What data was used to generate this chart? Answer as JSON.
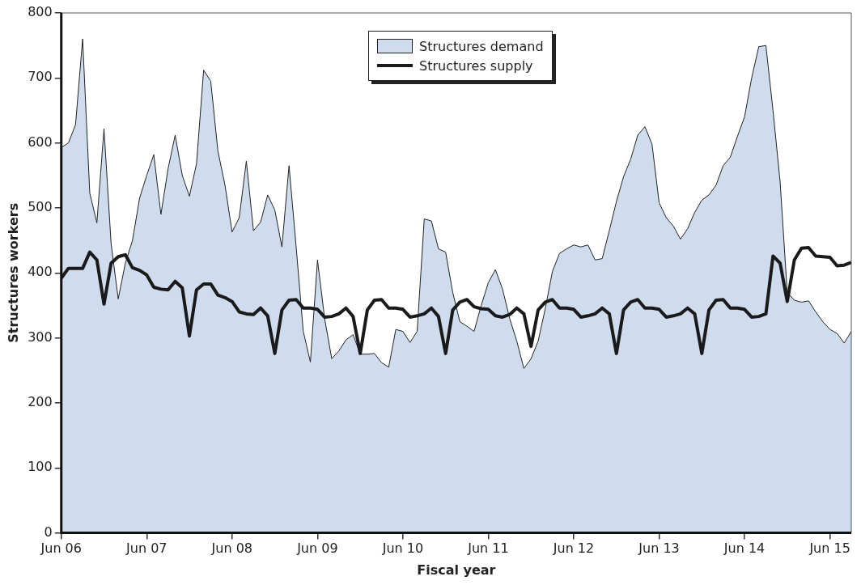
{
  "chart_data": {
    "type": "area",
    "xlabel": "Fiscal year",
    "ylabel": "Structures workers",
    "x": [
      "2006-06",
      "2006-07",
      "2006-08",
      "2006-09",
      "2006-10",
      "2006-11",
      "2006-12",
      "2007-01",
      "2007-02",
      "2007-03",
      "2007-04",
      "2007-05",
      "2007-06",
      "2007-07",
      "2007-08",
      "2007-09",
      "2007-10",
      "2007-11",
      "2007-12",
      "2008-01",
      "2008-02",
      "2008-03",
      "2008-04",
      "2008-05",
      "2008-06",
      "2008-07",
      "2008-08",
      "2008-09",
      "2008-10",
      "2008-11",
      "2008-12",
      "2009-01",
      "2009-02",
      "2009-03",
      "2009-04",
      "2009-05",
      "2009-06",
      "2009-07",
      "2009-08",
      "2009-09",
      "2009-10",
      "2009-11",
      "2009-12",
      "2010-01",
      "2010-02",
      "2010-03",
      "2010-04",
      "2010-05",
      "2010-06",
      "2010-07",
      "2010-08",
      "2010-09",
      "2010-10",
      "2010-11",
      "2010-12",
      "2011-01",
      "2011-02",
      "2011-03",
      "2011-04",
      "2011-05",
      "2011-06",
      "2011-07",
      "2011-08",
      "2011-09",
      "2011-10",
      "2011-11",
      "2011-12",
      "2012-01",
      "2012-02",
      "2012-03",
      "2012-04",
      "2012-05",
      "2012-06",
      "2012-07",
      "2012-08",
      "2012-09",
      "2012-10",
      "2012-11",
      "2012-12",
      "2013-01",
      "2013-02",
      "2013-03",
      "2013-04",
      "2013-05",
      "2013-06",
      "2013-07",
      "2013-08",
      "2013-09",
      "2013-10",
      "2013-11",
      "2013-12",
      "2014-01",
      "2014-02",
      "2014-03",
      "2014-04",
      "2014-05",
      "2014-06",
      "2014-07",
      "2014-08",
      "2014-09",
      "2014-10",
      "2014-11",
      "2014-12",
      "2015-01",
      "2015-02",
      "2015-03",
      "2015-04",
      "2015-05",
      "2015-06",
      "2015-07",
      "2015-08",
      "2015-09"
    ],
    "series": [
      {
        "name": "Structures demand",
        "color": "#cfdcee",
        "values": [
          593,
          600,
          628,
          760,
          523,
          477,
          622,
          445,
          360,
          415,
          450,
          515,
          550,
          582,
          490,
          560,
          612,
          550,
          518,
          568,
          712,
          695,
          588,
          535,
          463,
          485,
          572,
          465,
          478,
          520,
          497,
          440,
          565,
          440,
          310,
          263,
          420,
          330,
          268,
          280,
          297,
          305,
          275,
          275,
          276,
          262,
          255,
          313,
          310,
          293,
          310,
          483,
          480,
          437,
          432,
          370,
          325,
          318,
          310,
          350,
          385,
          405,
          375,
          330,
          295,
          253,
          268,
          295,
          345,
          402,
          430,
          437,
          443,
          440,
          443,
          420,
          422,
          465,
          510,
          548,
          575,
          612,
          625,
          598,
          508,
          485,
          472,
          452,
          468,
          493,
          512,
          520,
          535,
          565,
          578,
          610,
          640,
          700,
          748,
          750,
          650,
          540,
          370,
          358,
          355,
          357,
          340,
          325,
          313,
          307,
          292,
          310
        ]
      },
      {
        "name": "Structures supply",
        "type": "line",
        "color": "#1a1a1a",
        "values": [
          392,
          407,
          407,
          407,
          432,
          420,
          352,
          415,
          425,
          428,
          408,
          404,
          397,
          378,
          375,
          374,
          387,
          377,
          303,
          374,
          383,
          383,
          366,
          362,
          356,
          340,
          337,
          336,
          346,
          334,
          276,
          343,
          358,
          359,
          346,
          346,
          344,
          332,
          333,
          337,
          346,
          333,
          276,
          343,
          358,
          359,
          346,
          346,
          344,
          332,
          334,
          337,
          346,
          333,
          276,
          343,
          355,
          359,
          348,
          345,
          344,
          334,
          332,
          336,
          346,
          337,
          287,
          343,
          355,
          359,
          346,
          346,
          344,
          332,
          334,
          337,
          346,
          337,
          276,
          343,
          355,
          359,
          346,
          346,
          344,
          332,
          334,
          337,
          346,
          337,
          276,
          343,
          358,
          359,
          346,
          346,
          344,
          332,
          333,
          337,
          426,
          415,
          356,
          420,
          438,
          439,
          426,
          425,
          424,
          411,
          412,
          416
        ]
      }
    ],
    "xlim": [
      "2006-06",
      "2015-09"
    ],
    "xticks": [
      {
        "value": "2006-06",
        "label": "Jun 06"
      },
      {
        "value": "2007-06",
        "label": "Jun 07"
      },
      {
        "value": "2008-06",
        "label": "Jun 08"
      },
      {
        "value": "2009-06",
        "label": "Jun 09"
      },
      {
        "value": "2010-06",
        "label": "Jun 10"
      },
      {
        "value": "2011-06",
        "label": "Jun 11"
      },
      {
        "value": "2012-06",
        "label": "Jun 12"
      },
      {
        "value": "2013-06",
        "label": "Jun 13"
      },
      {
        "value": "2014-06",
        "label": "Jun 14"
      },
      {
        "value": "2015-06",
        "label": "Jun 15"
      }
    ],
    "ylim": [
      0,
      800
    ],
    "yticks": [
      0,
      100,
      200,
      300,
      400,
      500,
      600,
      700,
      800
    ],
    "legend": "top",
    "grid": false,
    "marker": "none",
    "line_style": "solid"
  }
}
